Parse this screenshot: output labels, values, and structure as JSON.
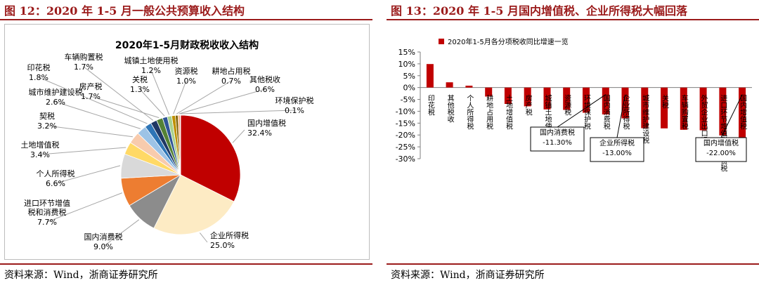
{
  "left": {
    "figure_title": "图 12：2020 年 1-5 月一般公共预算收入结构",
    "source": "资料来源：Wind，浙商证券研究所"
  },
  "right": {
    "figure_title": "图 13：2020 年 1-5 月国内增值税、企业所得税大幅回落",
    "source": "资料来源：Wind，浙商证券研究所"
  },
  "chart_data": [
    {
      "type": "pie",
      "title": "2020年1-5月财政税收收入结构",
      "slices": [
        {
          "label": "国内增值税",
          "value": 32.4,
          "value_label": "32.4%",
          "color": "#c00000"
        },
        {
          "label": "企业所得税",
          "value": 25.0,
          "value_label": "25.0%",
          "color": "#fdebc4"
        },
        {
          "label": "国内消费税",
          "value": 9.0,
          "value_label": "9.0%",
          "color": "#8c8c8c"
        },
        {
          "label": "进口环节增值\n税和消费税",
          "value": 7.7,
          "value_label": "7.7%",
          "color": "#ed7d31"
        },
        {
          "label": "个人所得税",
          "value": 6.6,
          "value_label": "6.6%",
          "color": "#d9d9d9"
        },
        {
          "label": "土地增值税",
          "value": 3.4,
          "value_label": "3.4%",
          "color": "#ffd966"
        },
        {
          "label": "契税",
          "value": 3.2,
          "value_label": "3.2%",
          "color": "#f8cbad"
        },
        {
          "label": "城市维护建设税",
          "value": 2.6,
          "value_label": "2.6%",
          "color": "#9dc3e6"
        },
        {
          "label": "印花税",
          "value": 1.8,
          "value_label": "1.8%",
          "color": "#2e75b6"
        },
        {
          "label": "车辆购置税",
          "value": 1.7,
          "value_label": "1.7%",
          "color": "#1f3864"
        },
        {
          "label": "房产税",
          "value": 1.7,
          "value_label": "1.7%",
          "color": "#548235"
        },
        {
          "label": "关税",
          "value": 1.3,
          "value_label": "1.3%",
          "color": "#2f5597"
        },
        {
          "label": "城镇土地使用税",
          "value": 1.2,
          "value_label": "1.2%",
          "color": "#a9d18e"
        },
        {
          "label": "资源税",
          "value": 1.0,
          "value_label": "1.0%",
          "color": "#bf9000"
        },
        {
          "label": "耕地占用税",
          "value": 0.7,
          "value_label": "0.7%",
          "color": "#7f6000"
        },
        {
          "label": "其他税收",
          "value": 0.6,
          "value_label": "0.6%",
          "color": "#f4b183"
        },
        {
          "label": "环境保护税",
          "value": 0.1,
          "value_label": "0.1%",
          "color": "#bdd7ee"
        }
      ]
    },
    {
      "type": "bar",
      "legend": "2020年1-5月各分项税收同比增速一览",
      "legend_position": "top-left",
      "categories": [
        "印花税",
        "其他税收",
        "个人所得税",
        "耕地占用税",
        "土地增值税",
        "房产税",
        "城镇土地使用税",
        "资源税",
        "环境保护税",
        "国内消费税",
        "企业所得税",
        "城市维护建设税",
        "关税",
        "车辆购置税",
        "外贸企业出口退税",
        "进口环节增值税和消费税",
        "国内增值税"
      ],
      "values": [
        9.9,
        2.2,
        0.8,
        -3.8,
        -6.9,
        -7.9,
        -9.2,
        -9.4,
        -10.6,
        -11.3,
        -13.0,
        -17.1,
        -17.2,
        -17.8,
        -18.0,
        -20.2,
        -22.0
      ],
      "ylim": [
        -30,
        15
      ],
      "yticks": [
        "15%",
        "10%",
        "5%",
        "0%",
        "-5%",
        "-10%",
        "-15%",
        "-20%",
        "-25%",
        "-30%"
      ],
      "ytick_values": [
        15,
        10,
        5,
        0,
        -5,
        -10,
        -15,
        -20,
        -25,
        -30
      ],
      "color": "#c00000",
      "annotations": [
        {
          "category": "国内消费税",
          "label": "国内消费税",
          "value_label": "-11.30%"
        },
        {
          "category": "企业所得税",
          "label": "企业所得税",
          "value_label": "-13.00%"
        },
        {
          "category": "国内增值税",
          "label": "国内增值税",
          "value_label": "-22.00%"
        }
      ]
    }
  ]
}
